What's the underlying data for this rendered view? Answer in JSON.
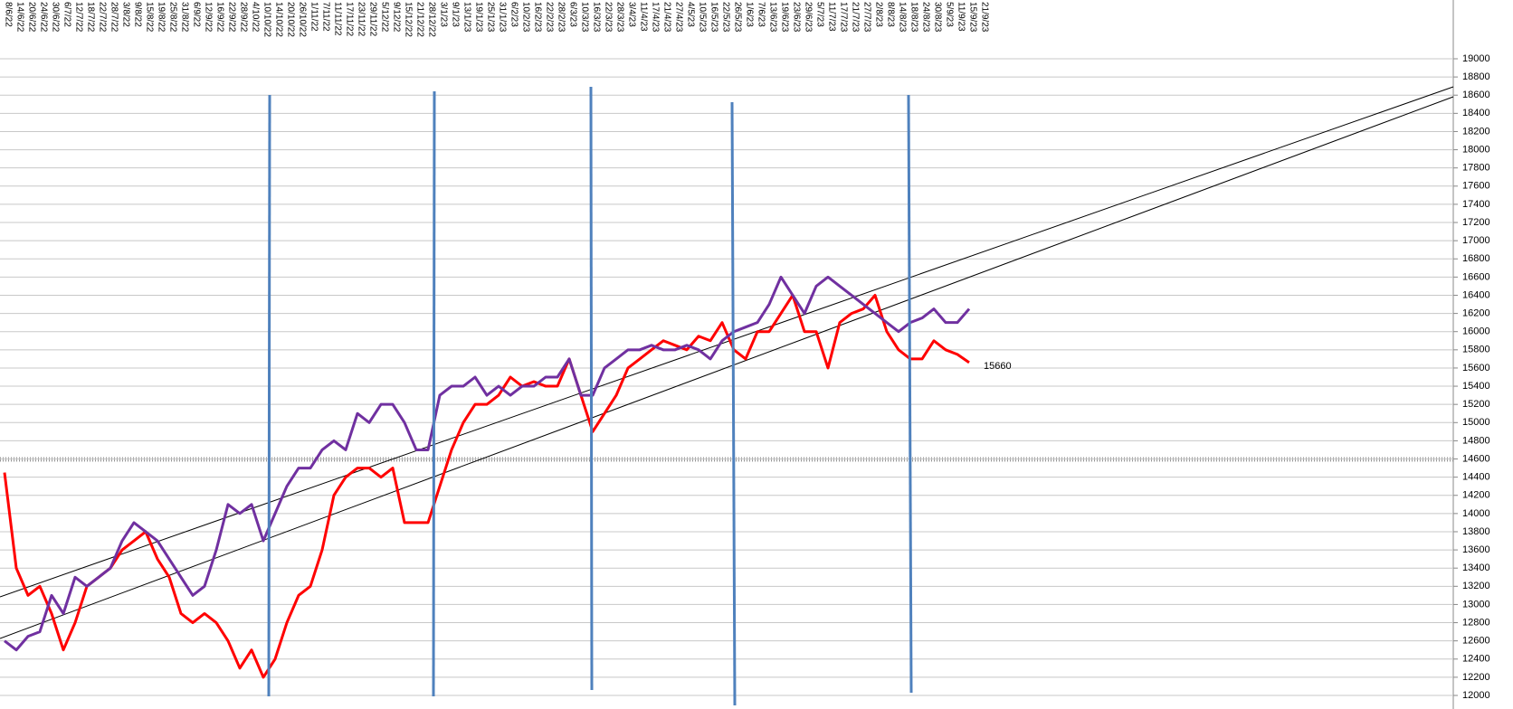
{
  "chart_data": {
    "type": "line",
    "categories": [
      "8/6/22",
      "14/6/22",
      "20/6/22",
      "24/6/22",
      "30/6/22",
      "6/7/22",
      "12/7/22",
      "18/7/22",
      "22/7/22",
      "28/7/22",
      "3/8/22",
      "9/8/22",
      "15/8/22",
      "19/8/22",
      "25/8/22",
      "31/8/22",
      "6/9/22",
      "12/9/22",
      "16/9/22",
      "22/9/22",
      "28/9/22",
      "4/10/22",
      "10/10/22",
      "14/10/22",
      "20/10/22",
      "26/10/22",
      "1/11/22",
      "7/11/22",
      "11/11/22",
      "17/11/22",
      "23/11/22",
      "29/11/22",
      "5/12/22",
      "9/12/22",
      "15/12/22",
      "21/12/22",
      "28/12/22",
      "3/1/23",
      "9/1/23",
      "13/1/23",
      "19/1/23",
      "25/1/23",
      "31/1/23",
      "6/2/23",
      "10/2/23",
      "16/2/23",
      "22/2/23",
      "28/2/23",
      "6/3/23",
      "10/3/23",
      "16/3/23",
      "22/3/23",
      "28/3/23",
      "3/4/23",
      "11/4/23",
      "17/4/23",
      "21/4/23",
      "27/4/23",
      "4/5/23",
      "10/5/23",
      "16/5/23",
      "22/5/23",
      "26/5/23",
      "1/6/23",
      "7/6/23",
      "13/6/23",
      "19/6/23",
      "23/6/23",
      "29/6/23",
      "5/7/23",
      "11/7/23",
      "17/7/23",
      "21/7/23",
      "27/7/23",
      "2/8/23",
      "8/8/23",
      "14/8/23",
      "18/8/23",
      "24/8/23",
      "30/8/23",
      "5/9/23",
      "11/9/23",
      "15/9/23",
      "21/9/23"
    ],
    "series": [
      {
        "color": "#ff0000",
        "values": [
          14450,
          13400,
          13100,
          13200,
          12900,
          12500,
          12800,
          13200,
          13300,
          13400,
          13600,
          13700,
          13800,
          13500,
          13300,
          12900,
          12800,
          12900,
          12800,
          12600,
          12300,
          12500,
          12200,
          12400,
          12800,
          13100,
          13200,
          13600,
          14200,
          14400,
          14500,
          14500,
          14400,
          14500,
          13900,
          13900,
          13900,
          14300,
          14700,
          15000,
          15200,
          15200,
          15300,
          15500,
          15400,
          15450,
          15400,
          15400,
          15700,
          15300,
          14900,
          15100,
          15300,
          15600,
          15700,
          15800,
          15900,
          15850,
          15800,
          15950,
          15900,
          16100,
          15800,
          15700,
          16000,
          16000,
          16200,
          16400,
          16000,
          16000,
          15600,
          16100,
          16200,
          16250,
          16400,
          16000,
          15800,
          15700,
          15700,
          15900,
          15800,
          15750,
          15660,
          null
        ]
      },
      {
        "color": "#7030a0",
        "values": [
          12600,
          12500,
          12650,
          12700,
          13100,
          12900,
          13300,
          13200,
          13300,
          13400,
          13700,
          13900,
          13800,
          13700,
          13500,
          13300,
          13100,
          13200,
          13600,
          14100,
          14000,
          14100,
          13700,
          14000,
          14300,
          14500,
          14500,
          14700,
          14800,
          14700,
          15100,
          15000,
          15200,
          15200,
          15000,
          14700,
          14700,
          15300,
          15400,
          15400,
          15500,
          15300,
          15400,
          15300,
          15400,
          15400,
          15500,
          15500,
          15700,
          15300,
          15300,
          15600,
          15700,
          15800,
          15800,
          15850,
          15800,
          15800,
          15850,
          15800,
          15700,
          15900,
          16000,
          16050,
          16100,
          16300,
          16600,
          16400,
          16200,
          16500,
          16600,
          16500,
          16400,
          16300,
          16200,
          16100,
          16000,
          16100,
          16150,
          16250,
          16100,
          16100,
          16250,
          null
        ]
      }
    ],
    "annotations": [
      {
        "text": "15660",
        "series": 0,
        "index": 82
      }
    ],
    "ylim": [
      12000,
      19000
    ],
    "yticks": [
      12000,
      12200,
      12400,
      12600,
      12800,
      13000,
      13200,
      13400,
      13600,
      13800,
      14000,
      14200,
      14400,
      14600,
      14800,
      15000,
      15200,
      15400,
      15600,
      15800,
      16000,
      16200,
      16400,
      16600,
      16800,
      17000,
      17200,
      17400,
      17600,
      17800,
      18000,
      18200,
      18400,
      18600,
      18800,
      19000
    ],
    "grid": true
  }
}
